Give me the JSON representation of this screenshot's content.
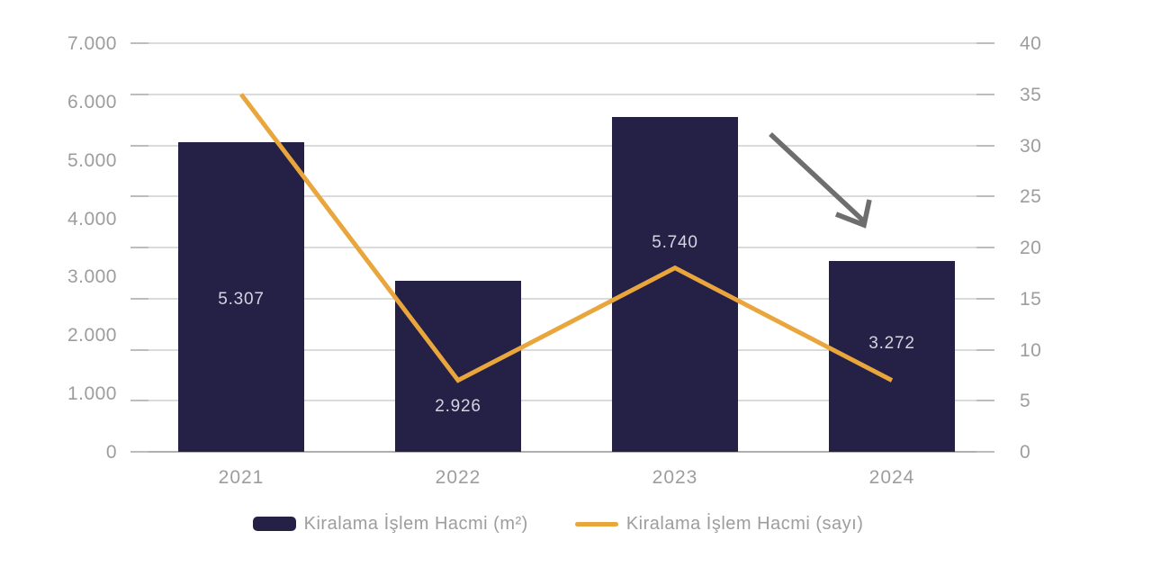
{
  "chart_data": {
    "type": "bar",
    "subtype": "combo-bar-line",
    "title": "",
    "categories": [
      "2021",
      "2022",
      "2023",
      "2024"
    ],
    "series": [
      {
        "name": "Kiralama İşlem Hacmi (m²)",
        "type": "bar",
        "axis": "left",
        "values": [
          5307,
          2926,
          5740,
          3272
        ],
        "data_labels": [
          "5.307",
          "2.926",
          "5.740",
          "3.272"
        ],
        "color": "#252045"
      },
      {
        "name": "Kiralama İşlem Hacmi (sayı)",
        "type": "line",
        "axis": "right",
        "values": [
          35,
          7,
          18,
          7
        ],
        "color": "#E9A63C"
      }
    ],
    "left_axis": {
      "range": [
        0,
        7000
      ],
      "tick_step": 1000,
      "tick_labels": [
        "0",
        "1.000",
        "2.000",
        "3.000",
        "4.000",
        "5.000",
        "6.000",
        "7.000"
      ]
    },
    "right_axis": {
      "range": [
        0,
        40
      ],
      "tick_step": 5,
      "tick_labels": [
        "0",
        "5",
        "10",
        "15",
        "20",
        "25",
        "30",
        "35",
        "40"
      ]
    },
    "grid": true,
    "legend_position": "bottom",
    "annotations": [
      {
        "type": "arrow",
        "direction": "down-right",
        "color": "#6E6E6E"
      }
    ]
  },
  "legend": {
    "items": [
      {
        "label": "Kiralama İşlem Hacmi (m²)",
        "swatch": "bar"
      },
      {
        "label": "Kiralama İşlem Hacmi (sayı)",
        "swatch": "line"
      }
    ]
  },
  "colors": {
    "background": "#FFFFFF",
    "bar": "#252045",
    "bar_label": "#D5D3E2",
    "line": "#E9A63C",
    "gridline": "#DBDBDB",
    "baseline": "#AFAFAF",
    "tick_stub": "#BDBDBD",
    "axis_text": "#9D9D9D",
    "arrow": "#6E6E6E"
  }
}
